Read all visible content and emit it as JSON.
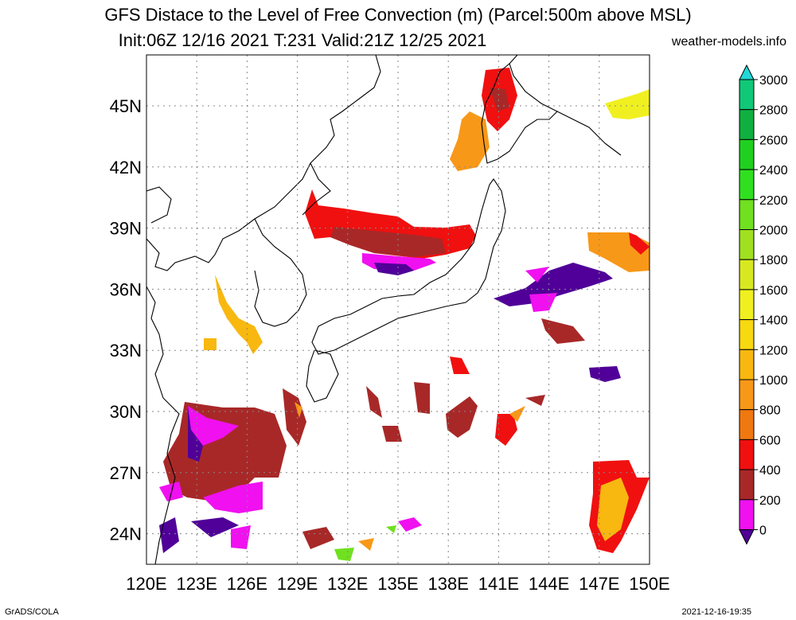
{
  "header": {
    "title": "GFS Distace to the Level of Free Convection (m) (Parcel:500m above MSL)",
    "subtitle": "Init:06Z 12/16 2021 T:231 Valid:21Z 12/25 2021",
    "site": "weather-models.info"
  },
  "footer": {
    "left": "GrADS/COLA",
    "right": "2021-12-16-19:35"
  },
  "map": {
    "lon_labels": [
      "120E",
      "123E",
      "126E",
      "129E",
      "132E",
      "135E",
      "138E",
      "141E",
      "144E",
      "147E",
      "150E"
    ],
    "lat_labels": [
      "45N",
      "42N",
      "39N",
      "36N",
      "33N",
      "30N",
      "27N",
      "24N"
    ],
    "lon_range": [
      120,
      150
    ],
    "lat_range": [
      22.5,
      47.5
    ],
    "grid": true
  },
  "colorbar": {
    "levels": [
      "3000",
      "2800",
      "2600",
      "2400",
      "2200",
      "2000",
      "1800",
      "1600",
      "1400",
      "1200",
      "1000",
      "800",
      "600",
      "400",
      "200",
      "0"
    ],
    "colors": [
      "#20d8d8",
      "#10c878",
      "#10b040",
      "#20d020",
      "#30e020",
      "#70e020",
      "#a0e020",
      "#d8e820",
      "#f0f020",
      "#f8d810",
      "#f8b810",
      "#f89818",
      "#f07810",
      "#f01010",
      "#a82828",
      "#f010f0",
      "#500098"
    ]
  }
}
